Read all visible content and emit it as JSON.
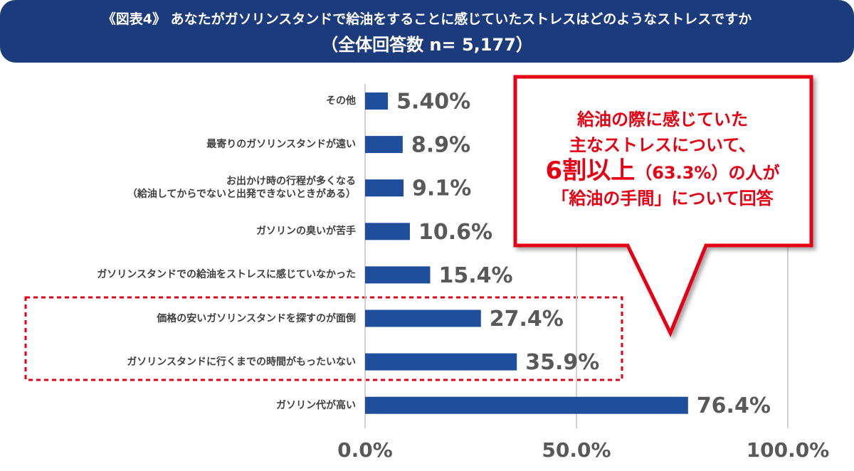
{
  "chart_data": {
    "type": "bar",
    "orientation": "horizontal",
    "title": "《図表4》 あなたがガソリンスタンドで給油をすることに感じていたストレスはどのようなストレスですか",
    "subtitle": "（全体回答数 n= 5,177）",
    "categories": [
      "その他",
      "最寄りのガソリンスタンドが遠い",
      "お出かけ時の行程が多くなる\n（給油してからでないと出発できないときがある）",
      "ガソリンの臭いが苦手",
      "ガソリンスタンドでの給油をストレスに感じていなかった",
      "価格の安いガソリンスタンドを探すのが面倒",
      "ガソリンスタンドに行くまでの時間がもったいない",
      "ガソリン代が高い"
    ],
    "values": [
      5.4,
      8.9,
      9.1,
      10.6,
      15.4,
      27.4,
      35.9,
      76.4
    ],
    "value_labels": [
      "5.40%",
      "8.9%",
      "9.1%",
      "10.6%",
      "15.4%",
      "27.4%",
      "35.9%",
      "76.4%"
    ],
    "color": "#1f4e9c",
    "xlim": [
      0,
      100
    ],
    "xticks": [
      {
        "value": 0,
        "label": "0.0%"
      },
      {
        "value": 50,
        "label": "50.0%"
      },
      {
        "value": 100,
        "label": "100.0%"
      }
    ],
    "grid": true,
    "annotation": {
      "line1": "給油の際に感じていた",
      "line2": "主なストレスについて、",
      "line3_emphasis": "6割以上",
      "line3_rest": "（63.3%）の人が",
      "line4": "「給油の手間」について回答"
    }
  }
}
